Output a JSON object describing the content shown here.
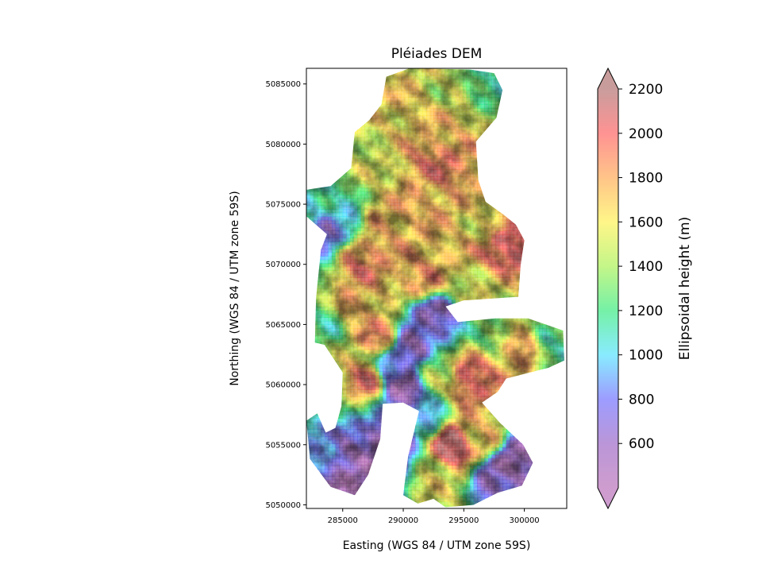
{
  "chart_data": {
    "type": "heatmap",
    "title": "Pléiades DEM",
    "xlabel": "Easting (WGS 84 / UTM zone 59S)",
    "ylabel": "Northing (WGS 84 / UTM zone 59S)",
    "xlim": [
      282000,
      303500
    ],
    "ylim": [
      5049700,
      5086300
    ],
    "xticks": [
      285000,
      290000,
      295000,
      300000
    ],
    "xtick_labels": [
      "285000",
      "290000",
      "295000",
      "300000"
    ],
    "yticks": [
      5050000,
      5055000,
      5060000,
      5065000,
      5070000,
      5075000,
      5080000,
      5085000
    ],
    "ytick_labels": [
      "5050000",
      "5055000",
      "5060000",
      "5065000",
      "5070000",
      "5075000",
      "5080000",
      "5085000"
    ],
    "grid": false,
    "colorbar": {
      "label": "Ellipsoidal height (m)",
      "range": [
        400,
        2200
      ],
      "extend": "both",
      "cmap": "rainbow (hillshaded, alpha)",
      "ticks": [
        600,
        800,
        1000,
        1200,
        1400,
        1600,
        1800,
        2000,
        2200
      ],
      "tick_labels": [
        "600",
        "800",
        "1000",
        "1200",
        "1400",
        "1600",
        "1800",
        "2000",
        "2200"
      ],
      "stops": [
        {
          "value": 400,
          "color": "#b060b0"
        },
        {
          "value": 600,
          "color": "#9055c0"
        },
        {
          "value": 800,
          "color": "#6060ff"
        },
        {
          "value": 1000,
          "color": "#40e0ff"
        },
        {
          "value": 1200,
          "color": "#20e870"
        },
        {
          "value": 1400,
          "color": "#a0f040"
        },
        {
          "value": 1600,
          "color": "#fff040"
        },
        {
          "value": 1800,
          "color": "#ffa040"
        },
        {
          "value": 2000,
          "color": "#ff5050"
        },
        {
          "value": 2200,
          "color": "#a86060"
        }
      ]
    },
    "dem_outline": [
      [
        288600,
        5085600
      ],
      [
        290500,
        5086300
      ],
      [
        295500,
        5086200
      ],
      [
        297500,
        5085900
      ],
      [
        298200,
        5084500
      ],
      [
        297700,
        5082200
      ],
      [
        296000,
        5080200
      ],
      [
        296200,
        5077000
      ],
      [
        296800,
        5075200
      ],
      [
        298200,
        5074200
      ],
      [
        299300,
        5073300
      ],
      [
        300000,
        5072000
      ],
      [
        299700,
        5070000
      ],
      [
        299500,
        5067300
      ],
      [
        295000,
        5067000
      ],
      [
        293500,
        5066500
      ],
      [
        294500,
        5065200
      ],
      [
        297600,
        5065500
      ],
      [
        300300,
        5065500
      ],
      [
        303200,
        5064500
      ],
      [
        303300,
        5062000
      ],
      [
        302000,
        5061400
      ],
      [
        298500,
        5060500
      ],
      [
        297800,
        5059400
      ],
      [
        296500,
        5058500
      ],
      [
        298000,
        5056800
      ],
      [
        299900,
        5055000
      ],
      [
        300700,
        5053500
      ],
      [
        299800,
        5051600
      ],
      [
        297800,
        5051000
      ],
      [
        295800,
        5050000
      ],
      [
        293500,
        5049800
      ],
      [
        292500,
        5050500
      ],
      [
        291200,
        5050100
      ],
      [
        290000,
        5050800
      ],
      [
        290400,
        5054000
      ],
      [
        291300,
        5057800
      ],
      [
        290000,
        5058500
      ],
      [
        288300,
        5058400
      ],
      [
        288100,
        5055500
      ],
      [
        287100,
        5052500
      ],
      [
        286000,
        5050800
      ],
      [
        284000,
        5051500
      ],
      [
        282300,
        5053800
      ],
      [
        282000,
        5057000
      ],
      [
        282900,
        5057600
      ],
      [
        283600,
        5056000
      ],
      [
        284400,
        5056400
      ],
      [
        284900,
        5058200
      ],
      [
        285000,
        5061000
      ],
      [
        283500,
        5063300
      ],
      [
        282700,
        5063500
      ],
      [
        282800,
        5067200
      ],
      [
        283200,
        5071200
      ],
      [
        283700,
        5072500
      ],
      [
        282000,
        5074000
      ],
      [
        282000,
        5076200
      ],
      [
        284000,
        5076500
      ],
      [
        285700,
        5078000
      ],
      [
        286000,
        5081000
      ],
      [
        287200,
        5082000
      ],
      [
        288200,
        5083300
      ],
      [
        288600,
        5085600
      ]
    ],
    "elevation_samples": [
      {
        "x": 292000,
        "y": 5075500,
        "z": 1750
      },
      {
        "x": 293000,
        "y": 5078500,
        "z": 1900
      },
      {
        "x": 294000,
        "y": 5081500,
        "z": 1700
      },
      {
        "x": 290500,
        "y": 5083500,
        "z": 1650
      },
      {
        "x": 293500,
        "y": 5084500,
        "z": 1500
      },
      {
        "x": 296500,
        "y": 5084800,
        "z": 1200
      },
      {
        "x": 298500,
        "y": 5071500,
        "z": 2050
      },
      {
        "x": 296800,
        "y": 5073500,
        "z": 1600
      },
      {
        "x": 296500,
        "y": 5067800,
        "z": 1550
      },
      {
        "x": 291500,
        "y": 5069000,
        "z": 1800
      },
      {
        "x": 286500,
        "y": 5070500,
        "z": 1900
      },
      {
        "x": 288500,
        "y": 5073500,
        "z": 1750
      },
      {
        "x": 285000,
        "y": 5073500,
        "z": 1000
      },
      {
        "x": 283000,
        "y": 5075000,
        "z": 1100
      },
      {
        "x": 283500,
        "y": 5072500,
        "z": 700
      },
      {
        "x": 287000,
        "y": 5078500,
        "z": 1500
      },
      {
        "x": 285500,
        "y": 5066500,
        "z": 1800
      },
      {
        "x": 284000,
        "y": 5065500,
        "z": 1200
      },
      {
        "x": 288000,
        "y": 5064000,
        "z": 1850
      },
      {
        "x": 287000,
        "y": 5060500,
        "z": 1900
      },
      {
        "x": 289000,
        "y": 5061500,
        "z": 800
      },
      {
        "x": 290500,
        "y": 5063000,
        "z": 600
      },
      {
        "x": 292500,
        "y": 5065500,
        "z": 650
      },
      {
        "x": 290000,
        "y": 5059500,
        "z": 550
      },
      {
        "x": 289000,
        "y": 5055000,
        "z": 500
      },
      {
        "x": 285500,
        "y": 5054000,
        "z": 600
      },
      {
        "x": 283500,
        "y": 5055000,
        "z": 900
      },
      {
        "x": 283000,
        "y": 5059500,
        "z": 1300
      },
      {
        "x": 286000,
        "y": 5051500,
        "z": 450
      },
      {
        "x": 294000,
        "y": 5055000,
        "z": 2150
      },
      {
        "x": 295500,
        "y": 5060500,
        "z": 2000
      },
      {
        "x": 296500,
        "y": 5055500,
        "z": 1700
      },
      {
        "x": 293000,
        "y": 5052000,
        "z": 1550
      },
      {
        "x": 297800,
        "y": 5052500,
        "z": 600
      },
      {
        "x": 299500,
        "y": 5054000,
        "z": 550
      },
      {
        "x": 299500,
        "y": 5063000,
        "z": 1800
      },
      {
        "x": 302500,
        "y": 5063200,
        "z": 1200
      },
      {
        "x": 297500,
        "y": 5064500,
        "z": 1300
      },
      {
        "x": 292800,
        "y": 5061000,
        "z": 1400
      },
      {
        "x": 291800,
        "y": 5057000,
        "z": 1000
      }
    ]
  }
}
